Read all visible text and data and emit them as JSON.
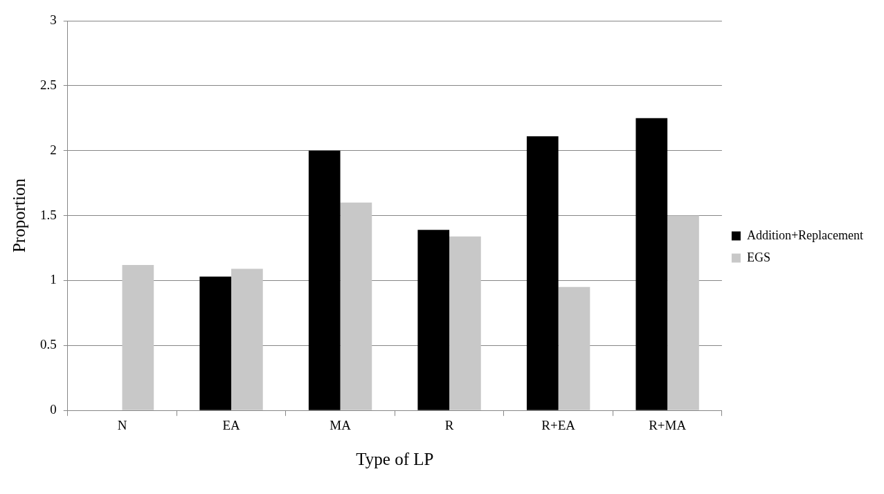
{
  "chart_data": {
    "type": "bar",
    "xlabel": "Type of LP",
    "ylabel": "Proportion",
    "categories": [
      "N",
      "EA",
      "MA",
      "R",
      "R+EA",
      "R+MA"
    ],
    "series": [
      {
        "name": "Addition+Replacement",
        "color": "#000000",
        "values": [
          0,
          1.03,
          2.0,
          1.39,
          2.11,
          2.25
        ]
      },
      {
        "name": "EGS",
        "color": "#c8c8c8",
        "values": [
          1.12,
          1.09,
          1.6,
          1.34,
          0.95,
          1.5
        ]
      }
    ],
    "ylim": [
      0,
      3
    ],
    "yticks": [
      0,
      0.5,
      1,
      1.5,
      2,
      2.5,
      3
    ],
    "grid": "y",
    "legend": "right"
  }
}
